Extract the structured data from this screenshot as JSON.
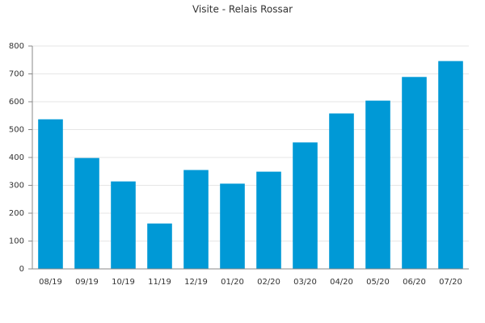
{
  "chart_data": {
    "type": "bar",
    "title": "Visite - Relais Rossar",
    "categories": [
      "08/19",
      "09/19",
      "10/19",
      "11/19",
      "12/19",
      "01/20",
      "02/20",
      "03/20",
      "04/20",
      "05/20",
      "06/20",
      "07/20"
    ],
    "values": [
      537,
      398,
      314,
      163,
      355,
      306,
      349,
      454,
      558,
      604,
      689,
      746
    ],
    "color": "#0099d6",
    "ylim": [
      0,
      800
    ],
    "yticks": [
      0,
      100,
      200,
      300,
      400,
      500,
      600,
      700,
      800
    ],
    "grid": true
  }
}
